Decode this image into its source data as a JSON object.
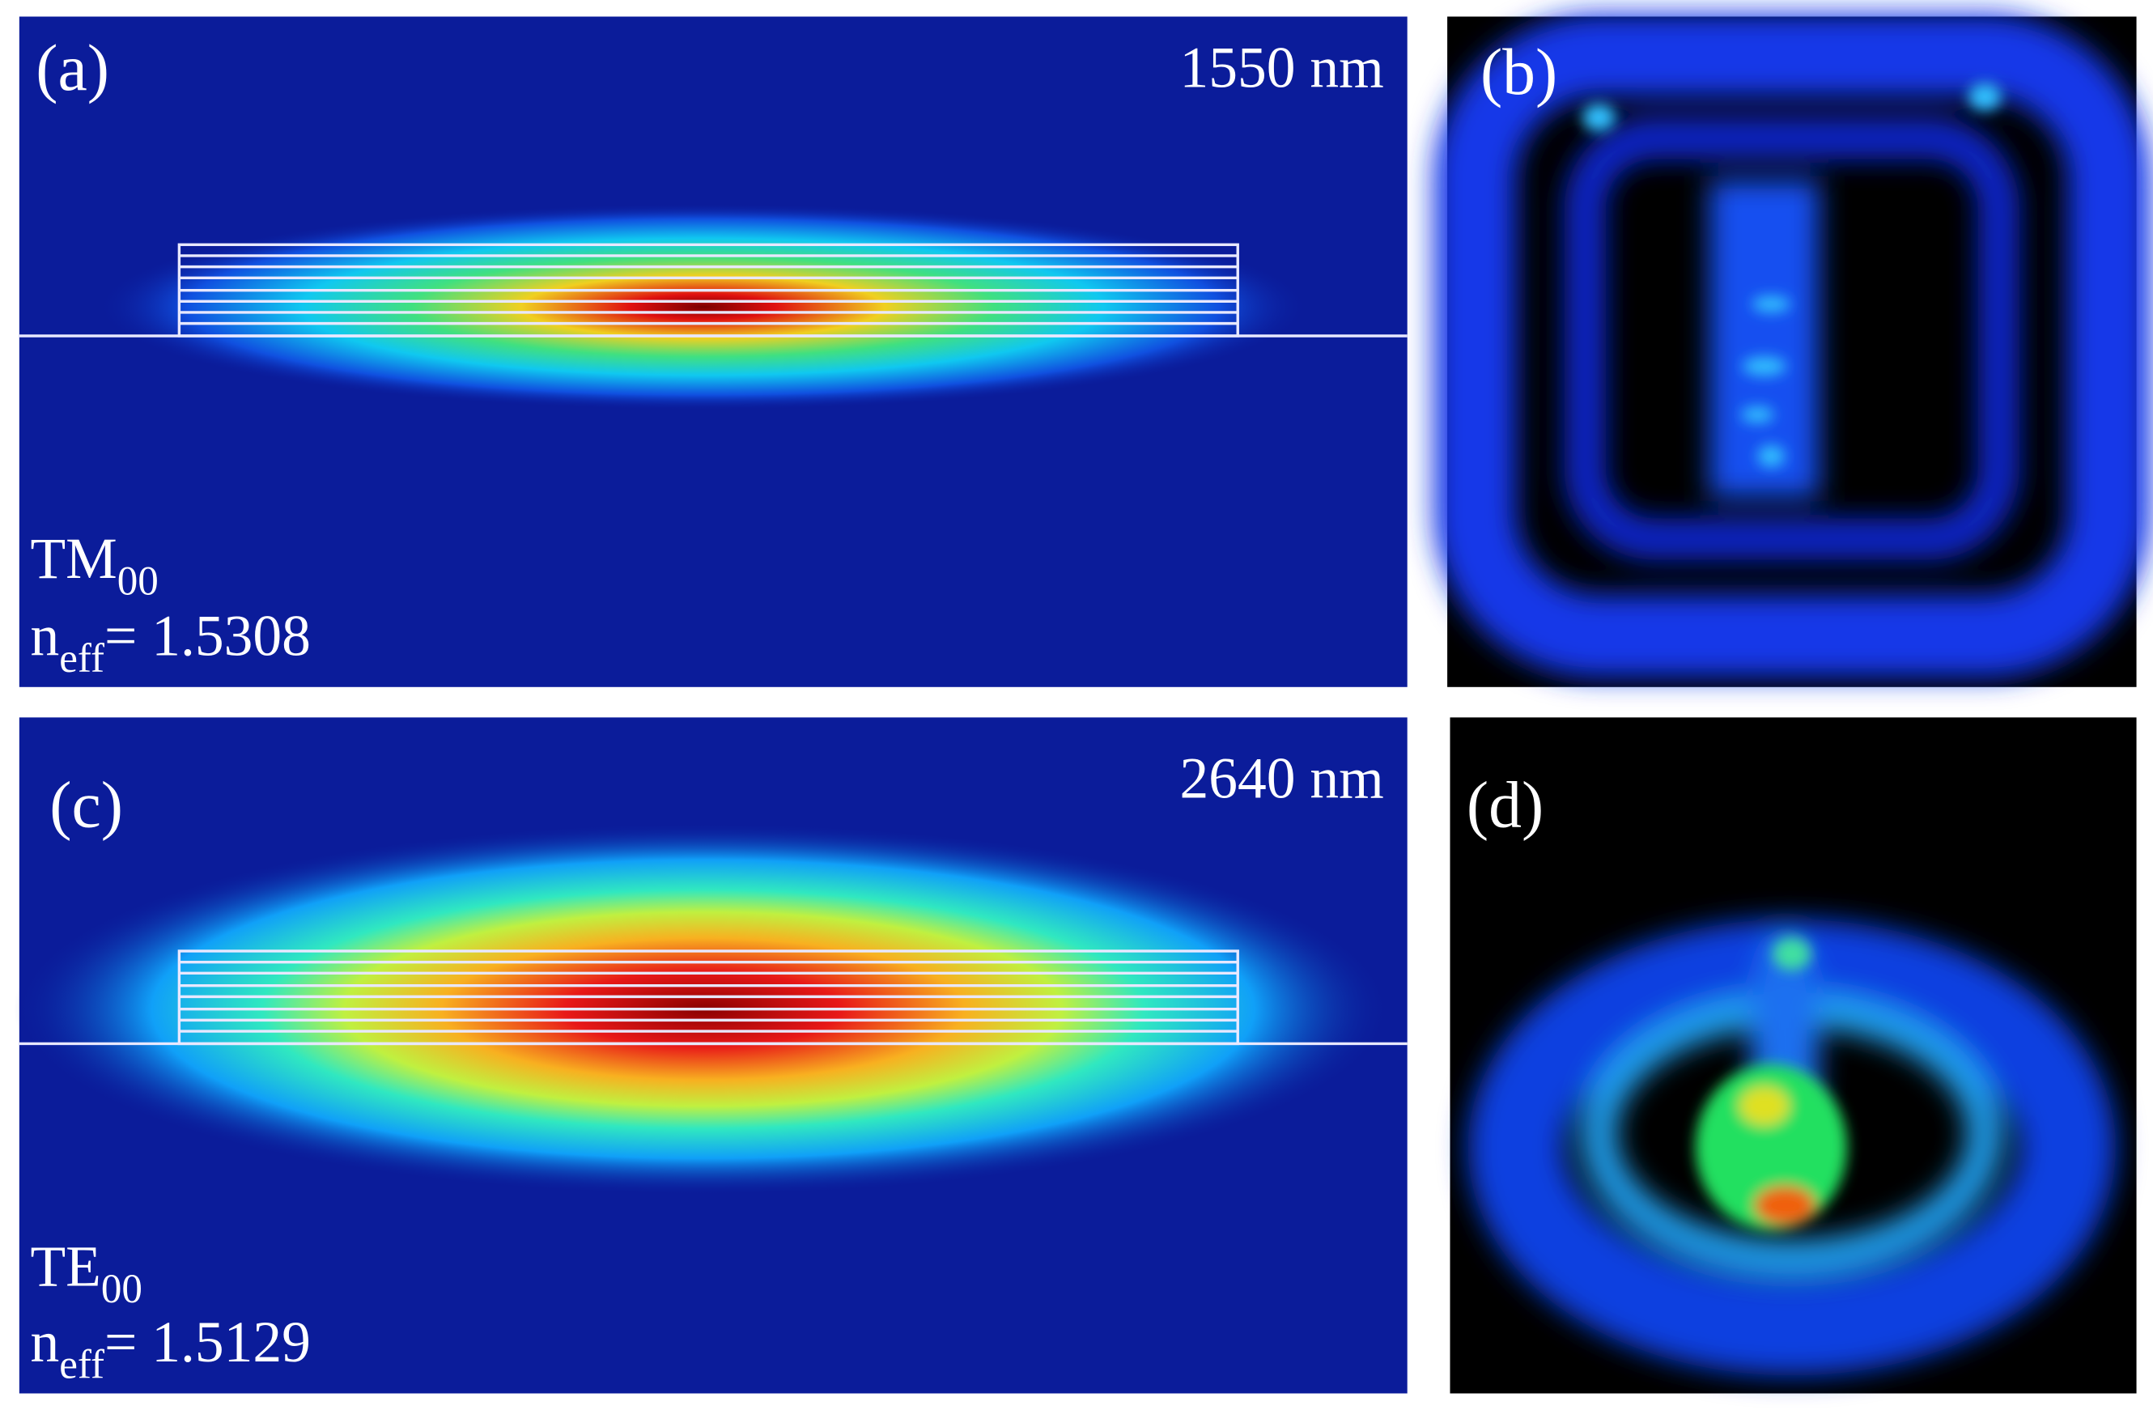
{
  "panels": [
    {
      "label": "(a)",
      "wavelength": "1550 nm",
      "mode": {
        "name": "TM",
        "sub": "00"
      },
      "neff": {
        "symbol": "n",
        "sub": "eff",
        "value": "= 1.5308"
      }
    },
    {
      "label": "(b)"
    },
    {
      "label": "(c)",
      "wavelength": "2640 nm",
      "mode": {
        "name": "TE",
        "sub": "00"
      },
      "neff": {
        "symbol": "n",
        "sub": "eff",
        "value": "= 1.5129"
      }
    },
    {
      "label": "(d)"
    }
  ]
}
